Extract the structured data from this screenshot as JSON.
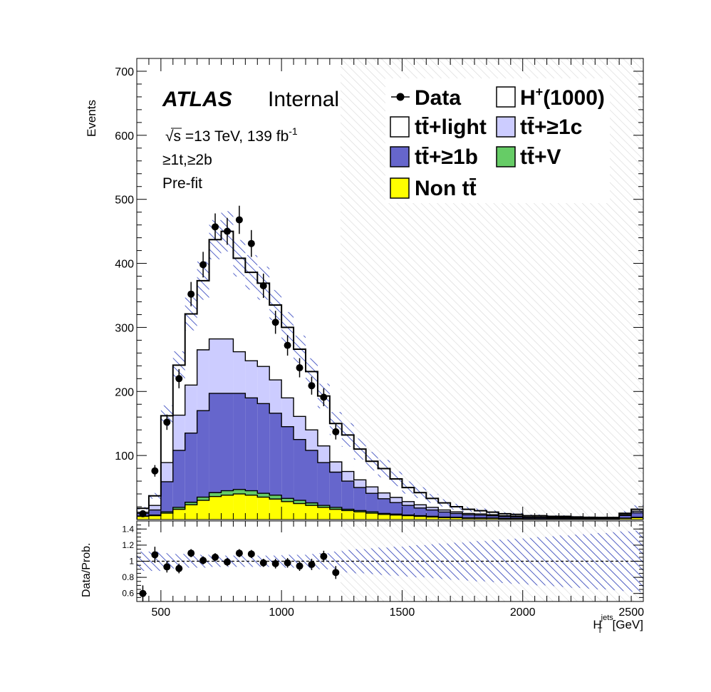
{
  "header": {
    "experiment": "ATLAS",
    "status": "Internal",
    "energy_label": "s =13 TeV, 139 fb",
    "lumi_exponent": "-1",
    "region": "≥1t,≥2b",
    "stage": "Pre-fit"
  },
  "legend": {
    "data": "Data",
    "signal": "H",
    "signal_sup": "+",
    "signal_mass": "(1000)",
    "ttlight": "tt̄+light",
    "tt1c": "tt̄+≥1c",
    "tt1b": "tt̄+≥1b",
    "ttV": "tt̄+V",
    "nontt": "Non tt̄"
  },
  "colors": {
    "tt1b": "#6666cc",
    "tt1c": "#ccccff",
    "ttV": "#66cc66",
    "nontt": "#ffff00",
    "ttlight": "#ffffff",
    "uncertainty_hatch": "#2b3dbb",
    "data": "#000000"
  },
  "chart_data": [
    {
      "type": "area",
      "subtype": "stacked histogram with data points",
      "ylabel": "Events",
      "xlim": [
        400,
        2500
      ],
      "ylim": [
        0,
        720
      ],
      "y_ticks": [
        "100",
        "200",
        "300",
        "400",
        "500",
        "600",
        "700"
      ],
      "x_ticks": [
        "500",
        "1000",
        "1500",
        "2000",
        "2500"
      ],
      "bin_edges": [
        400,
        450,
        500,
        550,
        600,
        650,
        700,
        750,
        800,
        850,
        900,
        950,
        1000,
        1050,
        1100,
        1150,
        1200,
        1250,
        1300,
        1350,
        1400,
        1450,
        1500,
        1550,
        1600,
        1650,
        1700,
        1750,
        1800,
        1850,
        1900,
        1950,
        2000,
        2050,
        2100,
        2150,
        2200,
        2250,
        2300,
        2350,
        2400,
        2450,
        2500
      ],
      "series": [
        {
          "name": "Non tt̄",
          "values": [
            5,
            6,
            10,
            16,
            23,
            30,
            36,
            38,
            40,
            38,
            35,
            32,
            28,
            25,
            22,
            19,
            16,
            14,
            12,
            10,
            8,
            7,
            6,
            5,
            4,
            3,
            3,
            2,
            2,
            2,
            1.5,
            1.5,
            1,
            1,
            1,
            1,
            1,
            0.8,
            0.8,
            0.8,
            2,
            3
          ]
        },
        {
          "name": "tt̄+V",
          "values": [
            0.5,
            1,
            2,
            3,
            4,
            5,
            6,
            7,
            7,
            7,
            6,
            6,
            5,
            5,
            4,
            3,
            3,
            2,
            2,
            2,
            1.5,
            1.5,
            1,
            1,
            1,
            0.8,
            0.6,
            0.5,
            0.5,
            0.4,
            0.3,
            0.3,
            0.2,
            0.2,
            0.2,
            0.2,
            0.2,
            0.2,
            0.1,
            0.1,
            0.3,
            0.5
          ]
        },
        {
          "name": "tt̄+≥1b",
          "values": [
            4,
            8,
            47,
            89,
            108,
            135,
            155,
            152,
            150,
            145,
            140,
            128,
            112,
            95,
            82,
            67,
            55,
            44,
            36,
            29,
            23,
            18,
            15,
            12,
            10,
            8,
            6,
            5,
            4.5,
            3.5,
            3,
            2.5,
            2,
            2,
            1.5,
            1.5,
            1,
            1,
            1,
            1,
            4,
            7
          ]
        },
        {
          "name": "tt̄+≥1c",
          "values": [
            2,
            7,
            30,
            55,
            75,
            95,
            85,
            85,
            65,
            58,
            58,
            52,
            45,
            36,
            32,
            26,
            16,
            15,
            12,
            10,
            9,
            8,
            6,
            5,
            4,
            3.2,
            2.4,
            2,
            1.8,
            1.6,
            1.2,
            1.2,
            0.8,
            0.8,
            0.8,
            0.8,
            0.8,
            0.5,
            0.5,
            0.5,
            1.5,
            2.5
          ]
        },
        {
          "name": "tt̄+light",
          "values": [
            6,
            15,
            73,
            78,
            111,
            108,
            155,
            168,
            146,
            138,
            130,
            117,
            110,
            105,
            91,
            78,
            60,
            57,
            48,
            40,
            38,
            29,
            22,
            19,
            14,
            11,
            8,
            6.5,
            5,
            4,
            3,
            2.5,
            2,
            2,
            1.5,
            1.5,
            1,
            1,
            0.8,
            0.8,
            2,
            3
          ]
        }
      ],
      "data_x": [
        425,
        475,
        525,
        575,
        625,
        675,
        725,
        775,
        825,
        875,
        925,
        975,
        1025,
        1075,
        1125,
        1175,
        1225
      ],
      "data_y": [
        9,
        76,
        152,
        220,
        352,
        398,
        457,
        450,
        468,
        431,
        365,
        308,
        272,
        237,
        209,
        191,
        137
      ],
      "data_err": [
        3,
        9,
        12,
        15,
        19,
        20,
        21,
        21,
        22,
        21,
        19,
        18,
        16,
        15,
        14,
        14,
        12
      ]
    },
    {
      "type": "scatter",
      "subtype": "ratio",
      "ylabel": "Data/Prob.",
      "xlabel": "H",
      "xlabel_sup": "jets",
      "xlabel_sub": "T",
      "xlabel_unit": "[GeV]",
      "xlim": [
        400,
        2500
      ],
      "ylim": [
        0.5,
        1.5
      ],
      "y_ticks": [
        "0.6",
        "0.8",
        "1",
        "1.2",
        "1.4"
      ],
      "x_ticks": [
        "500",
        "1000",
        "1500",
        "2000",
        "2500"
      ],
      "x": [
        425,
        475,
        525,
        575,
        625,
        675,
        725,
        775,
        825,
        875,
        925,
        975,
        1025,
        1075,
        1125,
        1175,
        1225
      ],
      "y": [
        0.6,
        1.08,
        0.93,
        0.91,
        1.1,
        1.01,
        1.05,
        0.99,
        1.1,
        1.09,
        0.98,
        0.97,
        0.98,
        0.94,
        0.96,
        1.06,
        0.86
      ],
      "err": [
        0.1,
        0.1,
        0.07,
        0.06,
        0.05,
        0.05,
        0.05,
        0.05,
        0.05,
        0.05,
        0.05,
        0.06,
        0.06,
        0.06,
        0.07,
        0.07,
        0.08
      ],
      "reference_line": 1,
      "uncertainty_halfwidth": [
        0.12,
        0.12,
        0.1,
        0.09,
        0.08,
        0.08,
        0.07,
        0.07,
        0.07,
        0.07,
        0.07,
        0.07,
        0.08,
        0.08,
        0.09,
        0.1,
        0.12,
        0.14,
        0.15,
        0.16,
        0.17,
        0.18,
        0.19,
        0.2,
        0.21,
        0.22,
        0.23,
        0.24,
        0.25,
        0.26,
        0.27,
        0.28,
        0.29,
        0.3,
        0.31,
        0.32,
        0.33,
        0.34,
        0.35,
        0.36,
        0.37,
        0.38
      ]
    }
  ]
}
